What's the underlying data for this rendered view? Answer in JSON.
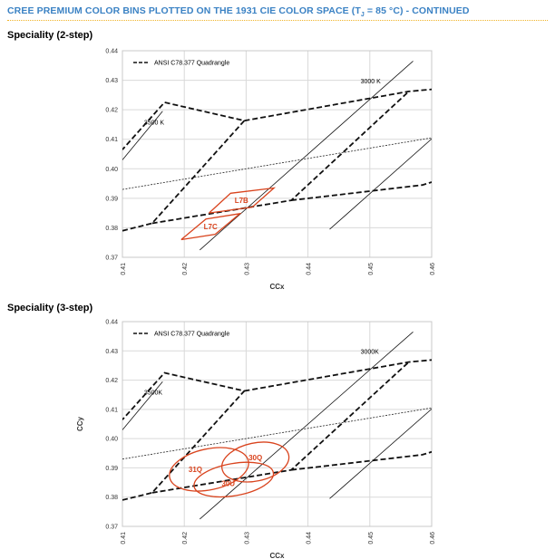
{
  "page_title": "CREE PREMIUM COLOR BINS PLOTTED ON THE 1931 CIE COLOR SPACE (Tj = 85 °C) - CONTINUED",
  "page_title_parts": {
    "before": "CREE PREMIUM COLOR BINS PLOTTED ON THE 1931 CIE COLOR SPACE (T",
    "sub": "J",
    "after": " = 85 °C) - CONTINUED"
  },
  "colors": {
    "title": "#3b82c4",
    "bin_outline": "#d9441e",
    "grid": "#d9d9d9"
  },
  "chart_data": [
    {
      "type": "line",
      "title": "Speciality (2-step)",
      "xlabel": "CCx",
      "ylabel": "",
      "xlim": [
        0.41,
        0.46
      ],
      "ylim": [
        0.37,
        0.44
      ],
      "xticks": [
        "0.41",
        "0.42",
        "0.43",
        "0.44",
        "0.45",
        "0.46"
      ],
      "yticks": [
        "0.37",
        "0.38",
        "0.39",
        "0.40",
        "0.41",
        "0.42",
        "0.43",
        "0.44"
      ],
      "grid": true,
      "legend": {
        "placement": "top-left",
        "entries": [
          "ANSI C78.377 Quadrangle"
        ]
      },
      "cct_lines": [
        {
          "label": "3500 K",
          "x": [
            0.41,
            0.4165
          ],
          "y": [
            0.403,
            0.4195
          ]
        },
        {
          "label": "3000 K",
          "x": [
            0.4225,
            0.457
          ],
          "y": [
            0.3725,
            0.4365
          ]
        },
        {
          "label": "",
          "x": [
            0.4435,
            0.461
          ],
          "y": [
            0.3795,
            0.412
          ]
        }
      ],
      "planckian": {
        "x": [
          0.41,
          0.46
        ],
        "y": [
          0.393,
          0.4105
        ]
      },
      "quadrangles": [
        {
          "x": [
            0.41,
            0.4148,
            0.4297,
            0.4168,
            0.41
          ],
          "y": [
            0.379,
            0.3815,
            0.4163,
            0.4225,
            0.4065
          ]
        },
        {
          "x": [
            0.4297,
            0.4563,
            0.4605
          ],
          "y": [
            0.4163,
            0.4262,
            0.427
          ]
        },
        {
          "x": [
            0.4148,
            0.4373,
            0.4563
          ],
          "y": [
            0.3815,
            0.3893,
            0.4262
          ]
        },
        {
          "x": [
            0.4373,
            0.4585,
            0.4605
          ],
          "y": [
            0.3893,
            0.3945,
            0.3958
          ]
        }
      ],
      "bins": [
        {
          "label": "L7C",
          "x": [
            0.4195,
            0.425,
            0.429,
            0.4235,
            0.4195
          ],
          "y": [
            0.376,
            0.3778,
            0.3848,
            0.383,
            0.376
          ]
        },
        {
          "label": "L7B",
          "x": [
            0.424,
            0.431,
            0.4345,
            0.4275,
            0.424
          ],
          "y": [
            0.385,
            0.387,
            0.3935,
            0.3917,
            0.385
          ]
        }
      ]
    },
    {
      "type": "line",
      "title": "Speciality (3-step)",
      "xlabel": "CCx",
      "ylabel": "CCy",
      "xlim": [
        0.41,
        0.46
      ],
      "ylim": [
        0.37,
        0.44
      ],
      "xticks": [
        "0.41",
        "0.42",
        "0.43",
        "0.44",
        "0.45",
        "0.46"
      ],
      "yticks": [
        "0.37",
        "0.38",
        "0.39",
        "0.40",
        "0.41",
        "0.42",
        "0.43",
        "0.44"
      ],
      "grid": true,
      "legend": {
        "placement": "top-left",
        "entries": [
          "ANSI C78.377 Quadrangle"
        ]
      },
      "cct_lines": [
        {
          "label": "3500K",
          "x": [
            0.41,
            0.4165
          ],
          "y": [
            0.403,
            0.4195
          ]
        },
        {
          "label": "3000K",
          "x": [
            0.4225,
            0.457
          ],
          "y": [
            0.3725,
            0.4365
          ]
        },
        {
          "label": "",
          "x": [
            0.4435,
            0.461
          ],
          "y": [
            0.3795,
            0.412
          ]
        }
      ],
      "planckian": {
        "x": [
          0.41,
          0.46
        ],
        "y": [
          0.393,
          0.4105
        ]
      },
      "quadrangles": [
        {
          "x": [
            0.41,
            0.4148,
            0.4297,
            0.4168,
            0.41
          ],
          "y": [
            0.379,
            0.3815,
            0.4163,
            0.4225,
            0.4065
          ]
        },
        {
          "x": [
            0.4297,
            0.4563,
            0.4605
          ],
          "y": [
            0.4163,
            0.4262,
            0.427
          ]
        },
        {
          "x": [
            0.4148,
            0.4373,
            0.4563
          ],
          "y": [
            0.3815,
            0.3893,
            0.4262
          ]
        },
        {
          "x": [
            0.4373,
            0.4585,
            0.4605
          ],
          "y": [
            0.3893,
            0.3945,
            0.3958
          ]
        }
      ],
      "ellipses": [
        {
          "label": "31Q",
          "cx": 0.424,
          "cy": 0.3895,
          "rx": 0.0065,
          "ry": 0.007,
          "angle_deg": -12
        },
        {
          "label": "30Q",
          "cx": 0.4315,
          "cy": 0.392,
          "rx": 0.0055,
          "ry": 0.0065,
          "angle_deg": -12
        },
        {
          "label": "30U",
          "cx": 0.428,
          "cy": 0.386,
          "rx": 0.0065,
          "ry": 0.0055,
          "angle_deg": -10
        }
      ]
    }
  ]
}
